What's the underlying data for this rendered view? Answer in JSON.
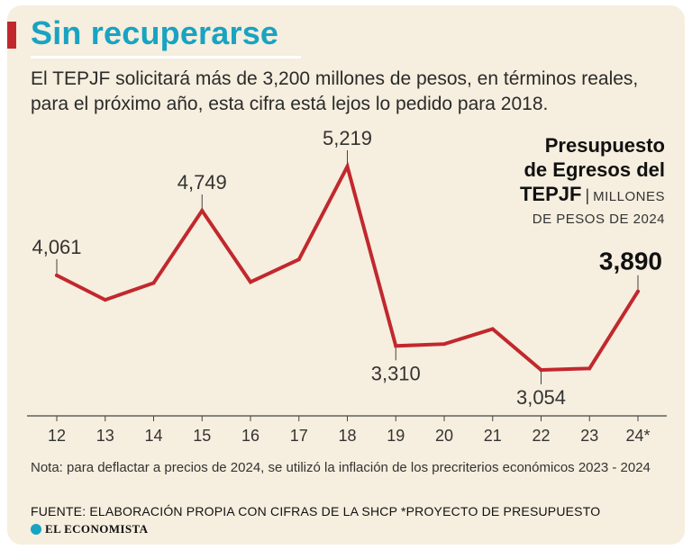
{
  "header": {
    "title": "Sin recuperarse",
    "subtitle": "El TEPJF solicitará más de 3,200 millones de pesos, en términos reales, para el próximo año, esta cifra está lejos lo pedido para 2018."
  },
  "legend": {
    "line1": "Presupuesto",
    "line2": "de Egresos del",
    "entity": "TEPJF",
    "separator": "|",
    "unit_part1": "MILLONES",
    "unit_part2": "DE PESOS DE 2024"
  },
  "chart_data": {
    "type": "line",
    "categories": [
      "12",
      "13",
      "14",
      "15",
      "16",
      "17",
      "18",
      "19",
      "20",
      "21",
      "22",
      "23",
      "24*"
    ],
    "series": [
      {
        "values": [
          4061,
          3800,
          3980,
          4749,
          3990,
          4230,
          5219,
          3310,
          3330,
          3490,
          3054,
          3070,
          3890
        ]
      }
    ],
    "data_labels": [
      {
        "index": 0,
        "text": "4,061"
      },
      {
        "index": 3,
        "text": "4,749"
      },
      {
        "index": 6,
        "text": "5,219"
      },
      {
        "index": 7,
        "text": "3,310"
      },
      {
        "index": 10,
        "text": "3,054"
      },
      {
        "index": 12,
        "text": "3,890"
      }
    ],
    "ylim": [
      2700,
      5500
    ],
    "line_color": "#c1282e",
    "grid": false
  },
  "footer": {
    "note": "Nota: para deflactar a precios de 2024, se utilizó la inflación de los precriterios económicos 2023 - 2024",
    "source": "FUENTE: ELABORACIÓN PROPIA CON CIFRAS DE LA SHCP   *PROYECTO DE PRESUPUESTO",
    "brand": "EL ECONOMISTA"
  },
  "colors": {
    "background": "#f6eede",
    "title": "#19a3c2",
    "accent": "#c1282e"
  }
}
